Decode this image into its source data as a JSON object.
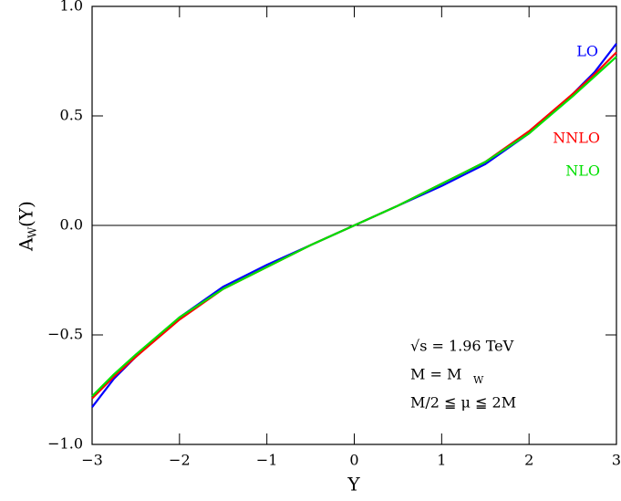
{
  "chart_data": {
    "type": "line",
    "x_label": "Y",
    "y_label": {
      "main": "A",
      "sub": "W",
      "rest": "(Y)"
    },
    "x": [
      -3,
      -2.75,
      -2.5,
      -2,
      -1.5,
      -1,
      -0.5,
      0,
      0.5,
      1,
      1.5,
      2,
      2.5,
      2.75,
      3
    ],
    "series": [
      {
        "name": "LO",
        "color": "#0000ff",
        "values": [
          -0.83,
          -0.7,
          -0.6,
          -0.42,
          -0.28,
          -0.18,
          -0.09,
          0,
          0.09,
          0.18,
          0.28,
          0.42,
          0.6,
          0.7,
          0.83
        ]
      },
      {
        "name": "NNLO",
        "color": "#ff0000",
        "values": [
          -0.79,
          -0.69,
          -0.6,
          -0.43,
          -0.29,
          -0.19,
          -0.09,
          0,
          0.09,
          0.19,
          0.29,
          0.43,
          0.6,
          0.69,
          0.79
        ]
      },
      {
        "name": "NLO",
        "color": "#00e000",
        "values": [
          -0.78,
          -0.68,
          -0.59,
          -0.42,
          -0.29,
          -0.19,
          -0.09,
          0,
          0.09,
          0.19,
          0.29,
          0.42,
          0.59,
          0.68,
          0.77
        ]
      }
    ],
    "xlim": [
      -3,
      3
    ],
    "ylim": [
      -1,
      1
    ],
    "xticks": [
      {
        "value": -3,
        "label": "−3"
      },
      {
        "value": -2,
        "label": "−2"
      },
      {
        "value": -1,
        "label": "−1"
      },
      0,
      1,
      2,
      3
    ],
    "yticks": [
      {
        "value": -1,
        "label": "−1.0"
      },
      {
        "value": -0.5,
        "label": "−0.5"
      },
      {
        "value": 0,
        "label": "0.0"
      },
      {
        "value": 0.5,
        "label": "0.5"
      },
      {
        "value": 1,
        "label": "1.0"
      }
    ],
    "annotations": {
      "energy": "√s = 1.96 TeV",
      "mass": "M = M",
      "mass_sub": "W",
      "scale": "M/2 ≦ μ ≦ 2M"
    }
  }
}
